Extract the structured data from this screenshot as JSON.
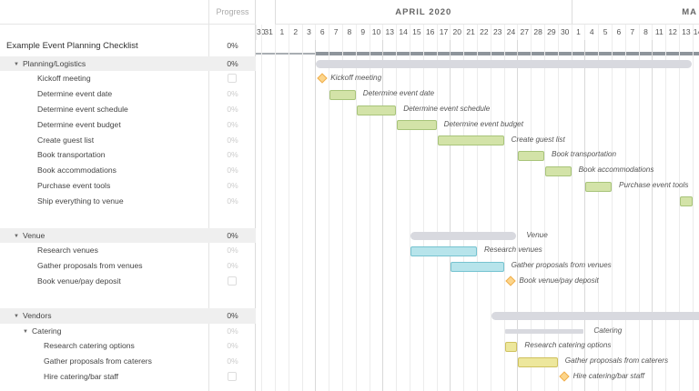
{
  "header": {
    "progress_label": "Progress",
    "months": [
      {
        "label": "APRIL 2020",
        "from": 2,
        "to": 24
      },
      {
        "label": "MA",
        "from": 24,
        "to": 40
      }
    ]
  },
  "days": [
    "30",
    "31",
    "1",
    "2",
    "3",
    "6",
    "7",
    "8",
    "9",
    "10",
    "13",
    "14",
    "15",
    "16",
    "17",
    "20",
    "21",
    "22",
    "23",
    "24",
    "27",
    "28",
    "29",
    "30",
    "1",
    "4",
    "5",
    "6",
    "7",
    "8",
    "11",
    "12",
    "13",
    "14"
  ],
  "week_starts": [
    "Apr 6",
    "Apr 13",
    "Apr 20",
    "Apr 27",
    "May 4",
    "May 11"
  ],
  "colors": {
    "green": "#d3e3a8",
    "green_border": "#a8c47a",
    "blue": "#b7e4eb",
    "blue_border": "#76c3d0",
    "yellow": "#ede79c",
    "yellow_border": "#cfc15e",
    "summary": "#d8d9df",
    "milestone": "#fcd58b"
  },
  "rows": [
    {
      "type": "title",
      "name": "Example Event Planning Checklist",
      "progress": "0%"
    },
    {
      "type": "group",
      "level": 1,
      "name": "Planning/Logistics",
      "progress": "0%",
      "bar": {
        "kind": "summary",
        "start": "Apr 6",
        "end": "May 13"
      }
    },
    {
      "type": "task",
      "level": 2,
      "name": "Kickoff meeting",
      "progress": "",
      "checkbox": true,
      "bar": {
        "kind": "milestone",
        "start": "Apr 6",
        "label": "Kickoff meeting"
      }
    },
    {
      "type": "task",
      "level": 2,
      "name": "Determine event date",
      "progress": "0%",
      "bar": {
        "kind": "task",
        "color": "green",
        "start": "Apr 7",
        "end": "Apr 8",
        "label": "Determine event date"
      }
    },
    {
      "type": "task",
      "level": 2,
      "name": "Determine event schedule",
      "progress": "0%",
      "bar": {
        "kind": "task",
        "color": "green",
        "start": "Apr 9",
        "end": "Apr 13",
        "label": "Determine event schedule"
      }
    },
    {
      "type": "task",
      "level": 2,
      "name": "Determine event budget",
      "progress": "0%",
      "bar": {
        "kind": "task",
        "color": "green",
        "start": "Apr 14",
        "end": "Apr 16",
        "label": "Determine event budget"
      }
    },
    {
      "type": "task",
      "level": 2,
      "name": "Create guest list",
      "progress": "0%",
      "bar": {
        "kind": "task",
        "color": "green",
        "start": "Apr 17",
        "end": "Apr 23",
        "label": "Create guest list"
      }
    },
    {
      "type": "task",
      "level": 2,
      "name": "Book transportation",
      "progress": "0%",
      "bar": {
        "kind": "task",
        "color": "green",
        "start": "Apr 27",
        "end": "Apr 28",
        "label": "Book transportation"
      }
    },
    {
      "type": "task",
      "level": 2,
      "name": "Book accommodations",
      "progress": "0%",
      "bar": {
        "kind": "task",
        "color": "green",
        "start": "Apr 29",
        "end": "Apr 30",
        "label": "Book accommodations"
      }
    },
    {
      "type": "task",
      "level": 2,
      "name": "Purchase event tools",
      "progress": "0%",
      "bar": {
        "kind": "task",
        "color": "green",
        "start": "May 4",
        "end": "May 5",
        "label": "Purchase event tools"
      }
    },
    {
      "type": "task",
      "level": 2,
      "name": "Ship everything to venue",
      "progress": "0%",
      "bar": {
        "kind": "task",
        "color": "green",
        "start": "May 13",
        "end": "May 13",
        "label": ""
      }
    },
    {
      "type": "gap"
    },
    {
      "type": "group",
      "level": 1,
      "name": "Venue",
      "progress": "0%",
      "bar": {
        "kind": "summary",
        "start": "Apr 15",
        "end": "Apr 24",
        "label": "Venue"
      }
    },
    {
      "type": "task",
      "level": 2,
      "name": "Research venues",
      "progress": "0%",
      "bar": {
        "kind": "task",
        "color": "blue",
        "start": "Apr 15",
        "end": "Apr 21",
        "label": "Research venues"
      }
    },
    {
      "type": "task",
      "level": 2,
      "name": "Gather proposals from venues",
      "progress": "0%",
      "bar": {
        "kind": "task",
        "color": "blue",
        "start": "Apr 20",
        "end": "Apr 23",
        "label": "Gather proposals from venues"
      }
    },
    {
      "type": "task",
      "level": 2,
      "name": "Book venue/pay deposit",
      "progress": "",
      "checkbox": true,
      "bar": {
        "kind": "milestone",
        "start": "Apr 24",
        "label": "Book venue/pay deposit"
      }
    },
    {
      "type": "gap"
    },
    {
      "type": "group",
      "level": 1,
      "name": "Vendors",
      "progress": "0%",
      "bar": {
        "kind": "summary",
        "start": "Apr 23",
        "end": "May 20"
      }
    },
    {
      "type": "subgroup",
      "level": 2,
      "name": "Catering",
      "progress": "0%",
      "bar": {
        "kind": "summary-thin",
        "start": "Apr 24",
        "end": "May 1",
        "label": "Catering"
      }
    },
    {
      "type": "task",
      "level": 3,
      "name": "Research catering options",
      "progress": "0%",
      "bar": {
        "kind": "task",
        "color": "yellow",
        "start": "Apr 24",
        "end": "Apr 24",
        "label": "Research catering options"
      }
    },
    {
      "type": "task",
      "level": 3,
      "name": "Gather proposals from caterers",
      "progress": "0%",
      "bar": {
        "kind": "task",
        "color": "yellow",
        "start": "Apr 27",
        "end": "Apr 29",
        "label": "Gather proposals from caterers"
      }
    },
    {
      "type": "task",
      "level": 3,
      "name": "Hire catering/bar staff",
      "progress": "",
      "checkbox": true,
      "bar": {
        "kind": "milestone",
        "start": "Apr 30",
        "label": "Hire catering/bar staff"
      }
    }
  ]
}
